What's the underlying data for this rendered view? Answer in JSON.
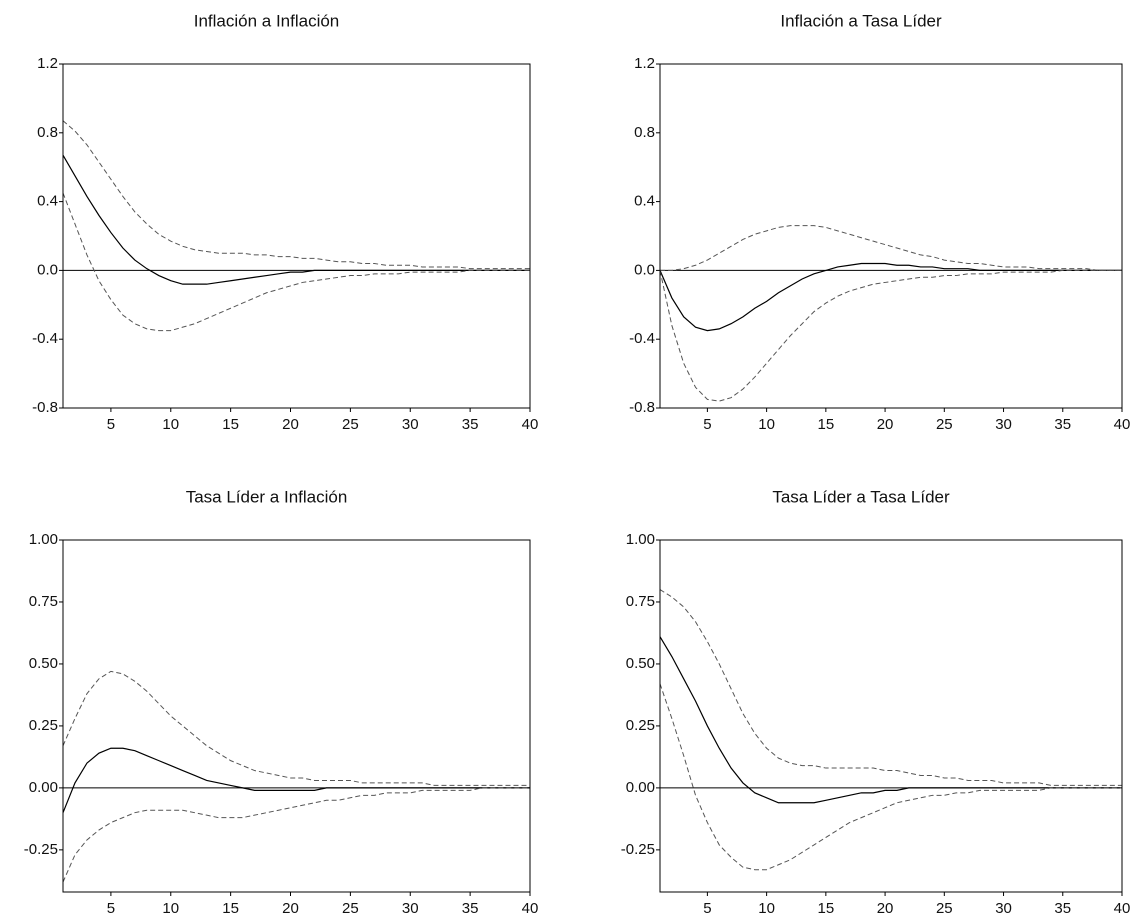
{
  "chart_data": [
    {
      "type": "line",
      "title": "Inflación a Inflación",
      "x": [
        1,
        2,
        3,
        4,
        5,
        6,
        7,
        8,
        9,
        10,
        11,
        12,
        13,
        14,
        15,
        16,
        17,
        18,
        19,
        20,
        21,
        22,
        23,
        24,
        25,
        26,
        27,
        28,
        29,
        30,
        31,
        32,
        33,
        34,
        35,
        36,
        37,
        38,
        39,
        40
      ],
      "xlim": [
        1,
        40
      ],
      "xticks": [
        5,
        10,
        15,
        20,
        25,
        30,
        35,
        40
      ],
      "ylim": [
        -0.8,
        1.2
      ],
      "yticks": [
        -0.8,
        -0.4,
        {
          "value": 0,
          "label": "0.0"
        },
        0.4,
        0.8,
        1.2
      ],
      "zero_line": true,
      "series": [
        {
          "color": "#000000",
          "dash": false,
          "values": [
            0.67,
            0.55,
            0.43,
            0.32,
            0.22,
            0.13,
            0.06,
            0.01,
            -0.03,
            -0.06,
            -0.08,
            -0.08,
            -0.08,
            -0.07,
            -0.06,
            -0.05,
            -0.04,
            -0.03,
            -0.02,
            -0.01,
            -0.01,
            0,
            0,
            0,
            0,
            0,
            0,
            0,
            0,
            0,
            0,
            0,
            0,
            0,
            0,
            0,
            0,
            0,
            0,
            0
          ]
        },
        {
          "color": "#555555",
          "dash": true,
          "values": [
            0.87,
            0.81,
            0.73,
            0.63,
            0.53,
            0.43,
            0.34,
            0.27,
            0.21,
            0.17,
            0.14,
            0.12,
            0.11,
            0.1,
            0.1,
            0.1,
            0.09,
            0.09,
            0.08,
            0.08,
            0.07,
            0.07,
            0.06,
            0.05,
            0.05,
            0.04,
            0.04,
            0.03,
            0.03,
            0.03,
            0.02,
            0.02,
            0.02,
            0.02,
            0.01,
            0.01,
            0.01,
            0.01,
            0.01,
            0.01
          ]
        },
        {
          "color": "#555555",
          "dash": true,
          "values": [
            0.45,
            0.27,
            0.09,
            -0.06,
            -0.17,
            -0.26,
            -0.31,
            -0.34,
            -0.35,
            -0.35,
            -0.33,
            -0.31,
            -0.28,
            -0.25,
            -0.22,
            -0.19,
            -0.16,
            -0.13,
            -0.11,
            -0.09,
            -0.07,
            -0.06,
            -0.05,
            -0.04,
            -0.03,
            -0.03,
            -0.02,
            -0.02,
            -0.02,
            -0.01,
            -0.01,
            -0.01,
            -0.01,
            -0.01,
            0,
            0,
            0,
            0,
            0,
            0
          ]
        }
      ]
    },
    {
      "type": "line",
      "title": "Inflación a Tasa Líder",
      "x": [
        1,
        2,
        3,
        4,
        5,
        6,
        7,
        8,
        9,
        10,
        11,
        12,
        13,
        14,
        15,
        16,
        17,
        18,
        19,
        20,
        21,
        22,
        23,
        24,
        25,
        26,
        27,
        28,
        29,
        30,
        31,
        32,
        33,
        34,
        35,
        36,
        37,
        38,
        39,
        40
      ],
      "xlim": [
        1,
        40
      ],
      "xticks": [
        5,
        10,
        15,
        20,
        25,
        30,
        35,
        40
      ],
      "ylim": [
        -0.8,
        1.2
      ],
      "yticks": [
        -0.8,
        -0.4,
        {
          "value": 0,
          "label": "0.0"
        },
        0.4,
        0.8,
        1.2
      ],
      "zero_line": true,
      "series": [
        {
          "color": "#000000",
          "dash": false,
          "values": [
            0,
            -0.16,
            -0.27,
            -0.33,
            -0.35,
            -0.34,
            -0.31,
            -0.27,
            -0.22,
            -0.18,
            -0.13,
            -0.09,
            -0.05,
            -0.02,
            0,
            0.02,
            0.03,
            0.04,
            0.04,
            0.04,
            0.03,
            0.03,
            0.02,
            0.02,
            0.01,
            0.01,
            0.01,
            0,
            0,
            0,
            0,
            0,
            0,
            0,
            0,
            0,
            0,
            0,
            0,
            0
          ]
        },
        {
          "color": "#555555",
          "dash": true,
          "values": [
            0,
            0,
            0.01,
            0.03,
            0.06,
            0.1,
            0.14,
            0.18,
            0.21,
            0.23,
            0.25,
            0.26,
            0.26,
            0.26,
            0.25,
            0.23,
            0.21,
            0.19,
            0.17,
            0.15,
            0.13,
            0.11,
            0.09,
            0.08,
            0.06,
            0.05,
            0.04,
            0.04,
            0.03,
            0.02,
            0.02,
            0.02,
            0.01,
            0.01,
            0.01,
            0.01,
            0.01,
            0,
            0,
            0
          ]
        },
        {
          "color": "#555555",
          "dash": true,
          "values": [
            0,
            -0.32,
            -0.54,
            -0.68,
            -0.75,
            -0.76,
            -0.74,
            -0.69,
            -0.62,
            -0.54,
            -0.46,
            -0.38,
            -0.31,
            -0.24,
            -0.19,
            -0.15,
            -0.12,
            -0.1,
            -0.08,
            -0.07,
            -0.06,
            -0.05,
            -0.04,
            -0.04,
            -0.03,
            -0.03,
            -0.02,
            -0.02,
            -0.02,
            -0.01,
            -0.01,
            -0.01,
            -0.01,
            -0.01,
            0,
            0,
            0,
            0,
            0,
            0
          ]
        }
      ]
    },
    {
      "type": "line",
      "title": "Tasa Líder a Inflación",
      "x": [
        1,
        2,
        3,
        4,
        5,
        6,
        7,
        8,
        9,
        10,
        11,
        12,
        13,
        14,
        15,
        16,
        17,
        18,
        19,
        20,
        21,
        22,
        23,
        24,
        25,
        26,
        27,
        28,
        29,
        30,
        31,
        32,
        33,
        34,
        35,
        36,
        37,
        38,
        39,
        40
      ],
      "xlim": [
        1,
        40
      ],
      "xticks": [
        5,
        10,
        15,
        20,
        25,
        30,
        35,
        40
      ],
      "ylim": [
        -0.42,
        1.0
      ],
      "yticks": [
        -0.25,
        {
          "value": 0,
          "label": "0.00"
        },
        0.25,
        {
          "value": 0.5,
          "label": "0.50"
        },
        0.75,
        {
          "value": 1,
          "label": "1.00"
        }
      ],
      "zero_line": true,
      "series": [
        {
          "color": "#000000",
          "dash": false,
          "values": [
            -0.1,
            0.02,
            0.1,
            0.14,
            0.16,
            0.16,
            0.15,
            0.13,
            0.11,
            0.09,
            0.07,
            0.05,
            0.03,
            0.02,
            0.01,
            0,
            -0.01,
            -0.01,
            -0.01,
            -0.01,
            -0.01,
            -0.01,
            0,
            0,
            0,
            0,
            0,
            0,
            0,
            0,
            0,
            0,
            0,
            0,
            0,
            0,
            0,
            0,
            0,
            0
          ]
        },
        {
          "color": "#555555",
          "dash": true,
          "values": [
            0.17,
            0.28,
            0.38,
            0.44,
            0.47,
            0.46,
            0.43,
            0.39,
            0.34,
            0.29,
            0.25,
            0.21,
            0.17,
            0.14,
            0.11,
            0.09,
            0.07,
            0.06,
            0.05,
            0.04,
            0.04,
            0.03,
            0.03,
            0.03,
            0.03,
            0.02,
            0.02,
            0.02,
            0.02,
            0.02,
            0.02,
            0.01,
            0.01,
            0.01,
            0.01,
            0.01,
            0.01,
            0.01,
            0.01,
            0.01
          ]
        },
        {
          "color": "#555555",
          "dash": true,
          "values": [
            -0.38,
            -0.27,
            -0.21,
            -0.17,
            -0.14,
            -0.12,
            -0.1,
            -0.09,
            -0.09,
            -0.09,
            -0.09,
            -0.1,
            -0.11,
            -0.12,
            -0.12,
            -0.12,
            -0.11,
            -0.1,
            -0.09,
            -0.08,
            -0.07,
            -0.06,
            -0.05,
            -0.05,
            -0.04,
            -0.03,
            -0.03,
            -0.02,
            -0.02,
            -0.02,
            -0.01,
            -0.01,
            -0.01,
            -0.01,
            -0.01,
            0,
            0,
            0,
            0,
            0
          ]
        }
      ]
    },
    {
      "type": "line",
      "title": "Tasa Líder a Tasa Líder",
      "x": [
        1,
        2,
        3,
        4,
        5,
        6,
        7,
        8,
        9,
        10,
        11,
        12,
        13,
        14,
        15,
        16,
        17,
        18,
        19,
        20,
        21,
        22,
        23,
        24,
        25,
        26,
        27,
        28,
        29,
        30,
        31,
        32,
        33,
        34,
        35,
        36,
        37,
        38,
        39,
        40
      ],
      "xlim": [
        1,
        40
      ],
      "xticks": [
        5,
        10,
        15,
        20,
        25,
        30,
        35,
        40
      ],
      "ylim": [
        -0.42,
        1.0
      ],
      "yticks": [
        -0.25,
        {
          "value": 0,
          "label": "0.00"
        },
        0.25,
        {
          "value": 0.5,
          "label": "0.50"
        },
        0.75,
        {
          "value": 1,
          "label": "1.00"
        }
      ],
      "zero_line": true,
      "series": [
        {
          "color": "#000000",
          "dash": false,
          "values": [
            0.61,
            0.53,
            0.44,
            0.35,
            0.25,
            0.16,
            0.08,
            0.02,
            -0.02,
            -0.04,
            -0.06,
            -0.06,
            -0.06,
            -0.06,
            -0.05,
            -0.04,
            -0.03,
            -0.02,
            -0.02,
            -0.01,
            -0.01,
            0,
            0,
            0,
            0,
            0,
            0,
            0,
            0,
            0,
            0,
            0,
            0,
            0,
            0,
            0,
            0,
            0,
            0,
            0
          ]
        },
        {
          "color": "#555555",
          "dash": true,
          "values": [
            0.8,
            0.77,
            0.73,
            0.67,
            0.59,
            0.5,
            0.4,
            0.3,
            0.22,
            0.16,
            0.12,
            0.1,
            0.09,
            0.09,
            0.08,
            0.08,
            0.08,
            0.08,
            0.08,
            0.07,
            0.07,
            0.06,
            0.05,
            0.05,
            0.04,
            0.04,
            0.03,
            0.03,
            0.03,
            0.02,
            0.02,
            0.02,
            0.02,
            0.01,
            0.01,
            0.01,
            0.01,
            0.01,
            0.01,
            0.01
          ]
        },
        {
          "color": "#555555",
          "dash": true,
          "values": [
            0.42,
            0.28,
            0.13,
            -0.03,
            -0.14,
            -0.23,
            -0.28,
            -0.32,
            -0.33,
            -0.33,
            -0.31,
            -0.29,
            -0.26,
            -0.23,
            -0.2,
            -0.17,
            -0.14,
            -0.12,
            -0.1,
            -0.08,
            -0.06,
            -0.05,
            -0.04,
            -0.03,
            -0.03,
            -0.02,
            -0.02,
            -0.01,
            -0.01,
            -0.01,
            -0.01,
            -0.01,
            -0.01,
            0,
            0,
            0,
            0,
            0,
            0,
            0
          ]
        }
      ]
    }
  ]
}
